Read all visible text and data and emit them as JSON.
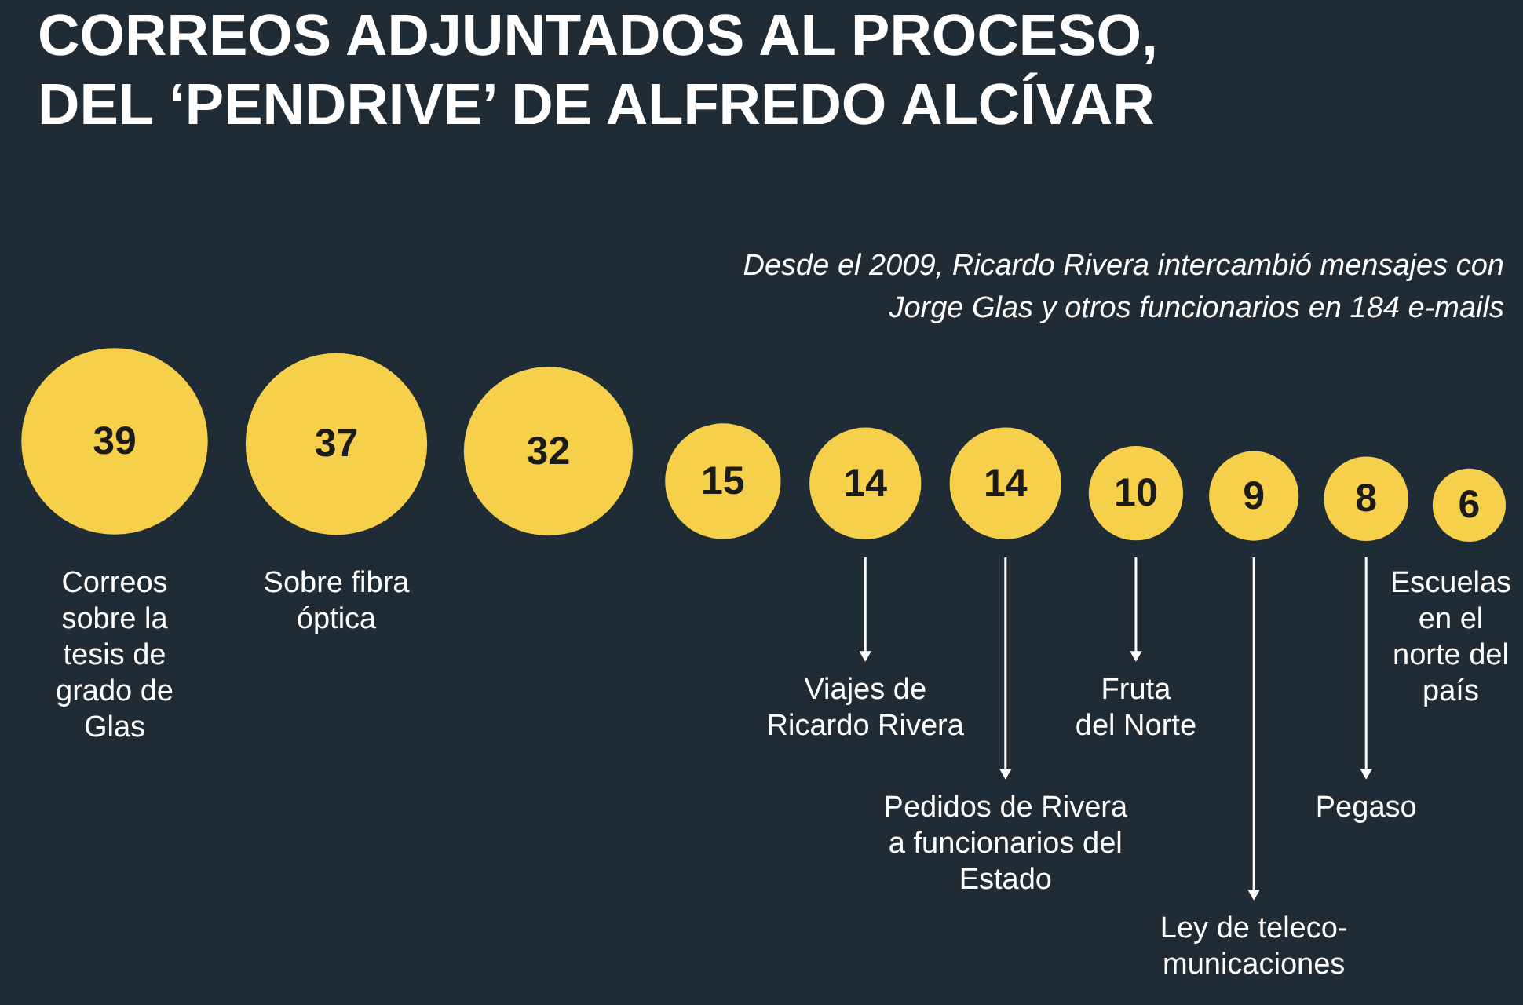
{
  "chart_data": {
    "type": "other",
    "title": "CORREOS ADJUNTADOS AL PROCESO,\nDEL ‘PENDRIVE’ DE ALFREDO ALCÍVAR",
    "subtitle": "Desde el 2009, Ricardo Rivera intercambió mensajes con\nJorge Glas y otros funcionarios en 184 e-mails",
    "categories": [
      "Correos\nsobre la\ntesis de\ngrado de\nGlas",
      "Sobre fibra\nóptica",
      null,
      null,
      "Viajes de\nRicardo Rivera",
      "Pedidos de Rivera\na funcionarios del\nEstado",
      "Fruta\ndel Norte",
      "Ley de teleco-\nmunicaciones",
      "Pegaso",
      "Escuelas\nen el\nnorte del\npaís"
    ],
    "values": [
      39,
      37,
      32,
      15,
      14,
      14,
      10,
      9,
      8,
      6
    ],
    "color": "#f6cf4b",
    "data_labels": true
  }
}
